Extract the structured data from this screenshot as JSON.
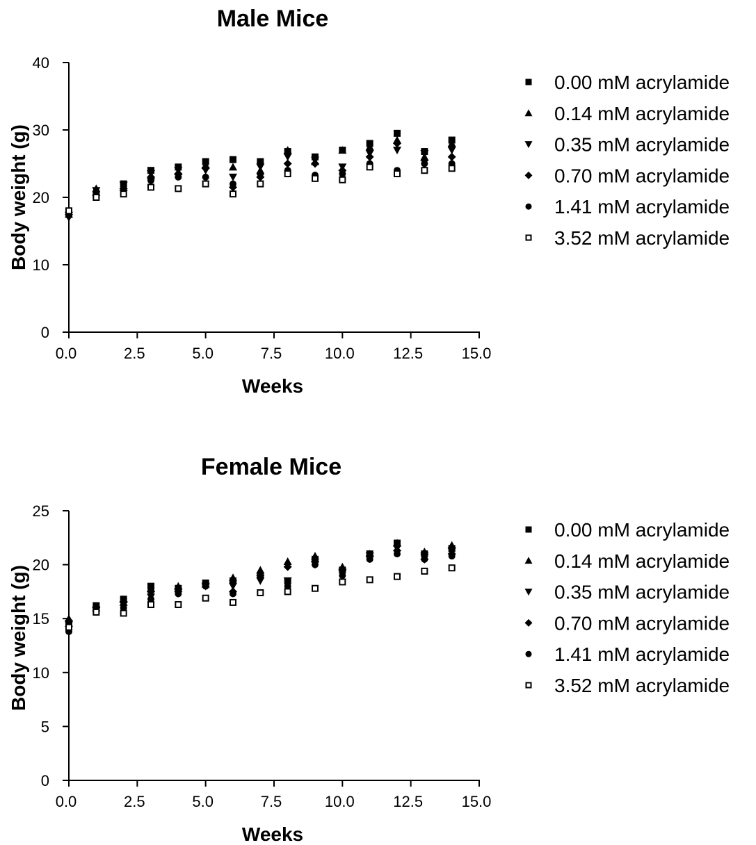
{
  "chart_data": [
    {
      "type": "scatter",
      "title": "Male Mice",
      "xlabel": "Weeks",
      "ylabel": "Body weight (g)",
      "xlim": [
        0,
        15
      ],
      "ylim": [
        0,
        40
      ],
      "xticks": [
        "0.0",
        "2.5",
        "5.0",
        "7.5",
        "10.0",
        "12.5",
        "15.0"
      ],
      "yticks": [
        "0",
        "10",
        "20",
        "30",
        "40"
      ],
      "x": [
        0,
        1,
        2,
        3,
        4,
        5,
        6,
        7,
        8,
        9,
        10,
        11,
        12,
        13,
        14
      ],
      "legend_position": "right",
      "grid": false,
      "series": [
        {
          "name": "0.00 mM acrylamide",
          "marker": "square-filled",
          "values": [
            18.0,
            20.5,
            22.0,
            24.0,
            24.5,
            25.3,
            25.6,
            25.3,
            26.8,
            26.0,
            27.0,
            28.0,
            29.5,
            26.8,
            28.5
          ]
        },
        {
          "name": "0.14 mM acrylamide",
          "marker": "triangle-up-filled",
          "values": [
            17.5,
            21.3,
            21.5,
            23.2,
            23.8,
            24.8,
            24.5,
            24.0,
            27.0,
            25.3,
            27.0,
            27.5,
            28.5,
            26.0,
            28.0
          ]
        },
        {
          "name": "0.35 mM acrylamide",
          "marker": "triangle-down-filled",
          "values": [
            17.0,
            21.0,
            21.8,
            23.5,
            24.0,
            24.0,
            23.0,
            24.5,
            26.0,
            25.5,
            24.5,
            26.5,
            27.0,
            26.5,
            27.0
          ]
        },
        {
          "name": "0.70 mM acrylamide",
          "marker": "diamond-filled",
          "values": [
            17.8,
            20.3,
            21.3,
            23.0,
            23.5,
            24.3,
            21.5,
            23.0,
            25.0,
            25.0,
            24.0,
            26.0,
            28.0,
            25.5,
            26.0
          ]
        },
        {
          "name": "1.41 mM acrylamide",
          "marker": "circle-filled",
          "values": [
            17.3,
            20.0,
            21.0,
            22.5,
            23.0,
            23.0,
            22.0,
            23.5,
            24.0,
            23.3,
            23.5,
            25.0,
            24.0,
            25.0,
            25.0
          ]
        },
        {
          "name": "3.52 mM acrylamide",
          "marker": "square-open",
          "values": [
            18.0,
            20.0,
            20.5,
            21.5,
            21.3,
            22.0,
            20.5,
            22.0,
            23.5,
            22.8,
            22.6,
            24.5,
            23.5,
            24.0,
            24.3
          ]
        }
      ]
    },
    {
      "type": "scatter",
      "title": "Female Mice",
      "xlabel": "Weeks",
      "ylabel": "Body weight (g)",
      "xlim": [
        0,
        15
      ],
      "ylim": [
        0,
        25
      ],
      "xticks": [
        "0.0",
        "2.5",
        "5.0",
        "7.5",
        "10.0",
        "12.5",
        "15.0"
      ],
      "yticks": [
        "0",
        "5",
        "10",
        "15",
        "20",
        "25"
      ],
      "x": [
        0,
        1,
        2,
        3,
        4,
        5,
        6,
        7,
        8,
        9,
        10,
        11,
        12,
        13,
        14
      ],
      "legend_position": "right",
      "grid": false,
      "series": [
        {
          "name": "0.00 mM acrylamide",
          "marker": "square-filled",
          "values": [
            14.5,
            16.2,
            16.8,
            18.0,
            17.8,
            18.3,
            18.5,
            19.0,
            18.5,
            20.5,
            19.5,
            21.0,
            22.0,
            21.0,
            21.5
          ]
        },
        {
          "name": "0.14 mM acrylamide",
          "marker": "triangle-up-filled",
          "values": [
            15.0,
            16.0,
            16.5,
            17.8,
            18.0,
            18.2,
            18.8,
            19.5,
            20.3,
            20.8,
            19.8,
            21.0,
            22.0,
            21.2,
            21.8
          ]
        },
        {
          "name": "0.35 mM acrylamide",
          "marker": "triangle-down-filled",
          "values": [
            14.0,
            15.8,
            16.3,
            17.0,
            17.5,
            18.0,
            18.0,
            18.5,
            18.5,
            20.0,
            19.3,
            20.8,
            21.5,
            20.8,
            21.3
          ]
        },
        {
          "name": "0.70 mM acrylamide",
          "marker": "diamond-filled",
          "values": [
            14.8,
            16.0,
            16.5,
            17.5,
            17.5,
            18.2,
            17.5,
            19.0,
            19.8,
            20.3,
            19.5,
            20.8,
            21.3,
            20.5,
            21.0
          ]
        },
        {
          "name": "1.41 mM acrylamide",
          "marker": "circle-filled",
          "values": [
            13.8,
            15.6,
            16.0,
            16.8,
            17.3,
            18.0,
            17.3,
            18.8,
            18.0,
            20.0,
            19.0,
            20.5,
            21.0,
            20.5,
            20.8
          ]
        },
        {
          "name": "3.52 mM acrylamide",
          "marker": "square-open",
          "values": [
            14.2,
            15.6,
            15.5,
            16.3,
            16.3,
            16.9,
            16.5,
            17.4,
            17.5,
            17.8,
            18.4,
            18.6,
            18.9,
            19.4,
            19.7
          ]
        }
      ]
    }
  ]
}
